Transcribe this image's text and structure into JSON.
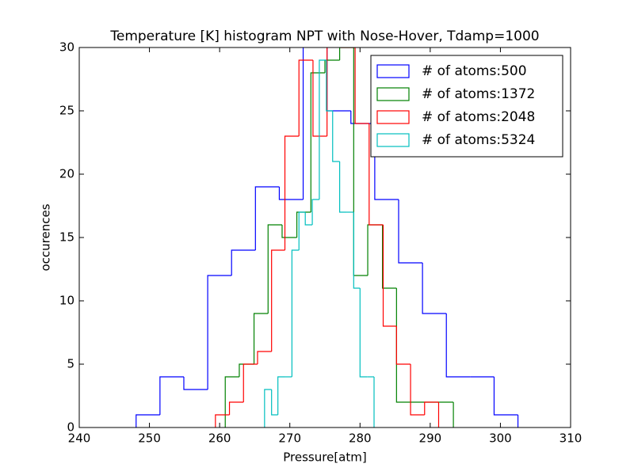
{
  "chart_data": {
    "type": "histogram",
    "title": "Temperature [K] histogram NPT with Nose-Hover, Tdamp=1000",
    "x_label": "Pressure[atm]",
    "y_label": "occurences",
    "xlim": [
      240,
      310
    ],
    "ylim": [
      0,
      30
    ],
    "xticks": [
      240,
      250,
      260,
      270,
      280,
      290,
      300,
      310
    ],
    "yticks": [
      0,
      5,
      10,
      15,
      20,
      25,
      30
    ],
    "legend": "upper right",
    "series": [
      {
        "name": "# of atoms:500",
        "color": "#0000ff",
        "bins": [
          248.1,
          251.5,
          254.9,
          258.3,
          261.7,
          265.1,
          268.5,
          271.9,
          275.3,
          278.7,
          282.1,
          285.5,
          288.9,
          292.3,
          295.7,
          299.1,
          302.5
        ],
        "values": [
          1,
          4,
          3,
          12,
          14,
          19,
          18,
          31,
          25,
          24,
          18,
          13,
          9,
          4,
          4,
          1
        ]
      },
      {
        "name": "# of atoms:1372",
        "color": "#008000",
        "bins": [
          260.8,
          262.8,
          264.9,
          266.9,
          268.9,
          271.0,
          273.0,
          275.0,
          277.1,
          279.1,
          281.1,
          283.2,
          285.2,
          287.2,
          289.3,
          291.3,
          293.3
        ],
        "values": [
          4,
          5,
          9,
          16,
          15,
          17,
          28,
          29,
          30,
          12,
          16,
          11,
          2,
          2,
          2,
          2
        ]
      },
      {
        "name": "# of atoms:2048",
        "color": "#ff0000",
        "bins": [
          259.4,
          261.4,
          263.4,
          265.4,
          267.4,
          269.3,
          271.3,
          273.3,
          275.3,
          277.3,
          279.3,
          281.3,
          283.3,
          285.2,
          287.2,
          289.2,
          291.2
        ],
        "values": [
          1,
          2,
          5,
          6,
          14,
          23,
          29,
          23,
          31,
          30,
          24,
          16,
          8,
          5,
          1,
          2
        ]
      },
      {
        "name": "# of atoms:5324",
        "color": "#00bfbf",
        "bins": [
          266.4,
          267.4,
          268.3,
          269.3,
          270.3,
          271.3,
          272.2,
          273.2,
          274.2,
          275.2,
          276.1,
          277.1,
          278.1,
          279.1,
          280.0,
          281.0,
          282.0
        ],
        "values": [
          3,
          1,
          4,
          4,
          14,
          17,
          16,
          18,
          29,
          25,
          21,
          17,
          17,
          11,
          4,
          4
        ]
      }
    ]
  }
}
